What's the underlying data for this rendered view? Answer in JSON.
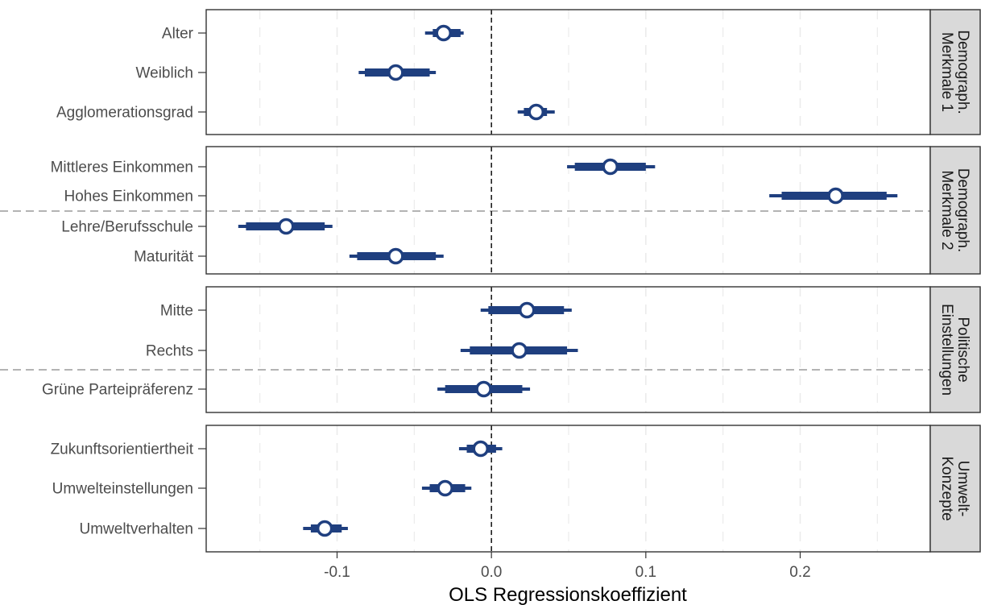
{
  "chart_data": {
    "type": "coefficient-plot",
    "xlabel": "OLS Regressionskoeffizient",
    "xlim": [
      -0.185,
      0.285
    ],
    "xticks": [
      -0.1,
      0.0,
      0.1,
      0.2
    ],
    "xtick_labels": [
      "-0.1",
      "0.0",
      "0.1",
      "0.2"
    ],
    "minor_grid": [
      -0.15,
      -0.05,
      0.05,
      0.15,
      0.25
    ],
    "reference_line": 0,
    "colors": {
      "point": "#1f3f7f",
      "strip": "#d9d9d9",
      "grid": "#ebebeb",
      "divider": "#b3b3b3",
      "border": "#333333"
    },
    "panels": [
      {
        "strip": [
          "Demograph.",
          "Merkmale 1"
        ],
        "divider_after": null,
        "items": [
          {
            "label": "Alter",
            "estimate": -0.031,
            "ci90": [
              -0.038,
              -0.02
            ],
            "ci95": [
              -0.043,
              -0.018
            ]
          },
          {
            "label": "Weiblich",
            "estimate": -0.062,
            "ci90": [
              -0.082,
              -0.04
            ],
            "ci95": [
              -0.086,
              -0.036
            ]
          },
          {
            "label": "Agglomerationsgrad",
            "estimate": 0.029,
            "ci90": [
              0.021,
              0.036
            ],
            "ci95": [
              0.017,
              0.041
            ]
          }
        ]
      },
      {
        "strip": [
          "Demograph.",
          "Merkmale 2"
        ],
        "divider_after": 1,
        "items": [
          {
            "label": "Mittleres Einkommen",
            "estimate": 0.077,
            "ci90": [
              0.054,
              0.1
            ],
            "ci95": [
              0.049,
              0.106
            ]
          },
          {
            "label": "Hohes Einkommen",
            "estimate": 0.223,
            "ci90": [
              0.188,
              0.256
            ],
            "ci95": [
              0.18,
              0.263
            ]
          },
          {
            "label": "Lehre/Berufsschule",
            "estimate": -0.133,
            "ci90": [
              -0.159,
              -0.108
            ],
            "ci95": [
              -0.164,
              -0.103
            ]
          },
          {
            "label": "Maturität",
            "estimate": -0.062,
            "ci90": [
              -0.087,
              -0.036
            ],
            "ci95": [
              -0.092,
              -0.031
            ]
          }
        ]
      },
      {
        "strip": [
          "Politische",
          "Einstellungen"
        ],
        "divider_after": 1,
        "items": [
          {
            "label": "Mitte",
            "estimate": 0.023,
            "ci90": [
              -0.002,
              0.047
            ],
            "ci95": [
              -0.007,
              0.052
            ]
          },
          {
            "label": "Rechts",
            "estimate": 0.018,
            "ci90": [
              -0.014,
              0.049
            ],
            "ci95": [
              -0.02,
              0.056
            ]
          },
          {
            "label": "Grüne Parteipräferenz",
            "estimate": -0.005,
            "ci90": [
              -0.03,
              0.02
            ],
            "ci95": [
              -0.035,
              0.025
            ]
          }
        ]
      },
      {
        "strip": [
          "Umwelt-",
          "Konzepte"
        ],
        "divider_after": null,
        "items": [
          {
            "label": "Zukunftsorientiertheit",
            "estimate": -0.007,
            "ci90": [
              -0.016,
              0.003
            ],
            "ci95": [
              -0.021,
              0.007
            ]
          },
          {
            "label": "Umwelteinstellungen",
            "estimate": -0.03,
            "ci90": [
              -0.04,
              -0.017
            ],
            "ci95": [
              -0.045,
              -0.013
            ]
          },
          {
            "label": "Umweltverhalten",
            "estimate": -0.108,
            "ci90": [
              -0.117,
              -0.097
            ],
            "ci95": [
              -0.122,
              -0.093
            ]
          }
        ]
      }
    ]
  }
}
